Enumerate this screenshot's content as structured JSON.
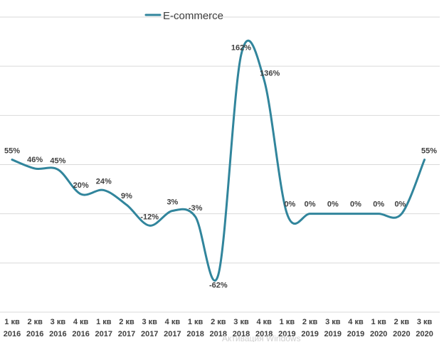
{
  "chart_data": {
    "type": "line",
    "legend": {
      "position": "top-left",
      "entries": [
        "E-commerce"
      ]
    },
    "grid": true,
    "ylim": [
      -100,
      200
    ],
    "categories": [
      [
        "1 кв",
        "2016"
      ],
      [
        "2 кв",
        "2016"
      ],
      [
        "3 кв",
        "2016"
      ],
      [
        "4 кв",
        "2016"
      ],
      [
        "1 кв",
        "2017"
      ],
      [
        "2 кв",
        "2017"
      ],
      [
        "3 кв",
        "2017"
      ],
      [
        "4 кв",
        "2017"
      ],
      [
        "1 кв",
        "2018"
      ],
      [
        "2 кв",
        "2018"
      ],
      [
        "3 кв",
        "2018"
      ],
      [
        "4 кв",
        "2018"
      ],
      [
        "1 кв",
        "2019"
      ],
      [
        "2 кв",
        "2019"
      ],
      [
        "3 кв",
        "2019"
      ],
      [
        "4 кв",
        "2019"
      ],
      [
        "1 кв",
        "2020"
      ],
      [
        "2 кв",
        "2020"
      ],
      [
        "3 кв",
        "2020"
      ]
    ],
    "series": [
      {
        "name": "E-commerce",
        "color": "#31859c",
        "values": [
          55,
          46,
          45,
          20,
          24,
          9,
          -12,
          3,
          -3,
          -62,
          162,
          136,
          0,
          0,
          0,
          0,
          0,
          0,
          55
        ],
        "labels": [
          "55%",
          "46%",
          "45%",
          "20%",
          "24%",
          "9%",
          "-12%",
          "3%",
          "-3%",
          "-62%",
          "162%",
          "136%",
          "0%",
          "0%",
          "0%",
          "0%",
          "0%",
          "0%",
          "55%"
        ]
      }
    ]
  },
  "watermark": "Активация Windows"
}
